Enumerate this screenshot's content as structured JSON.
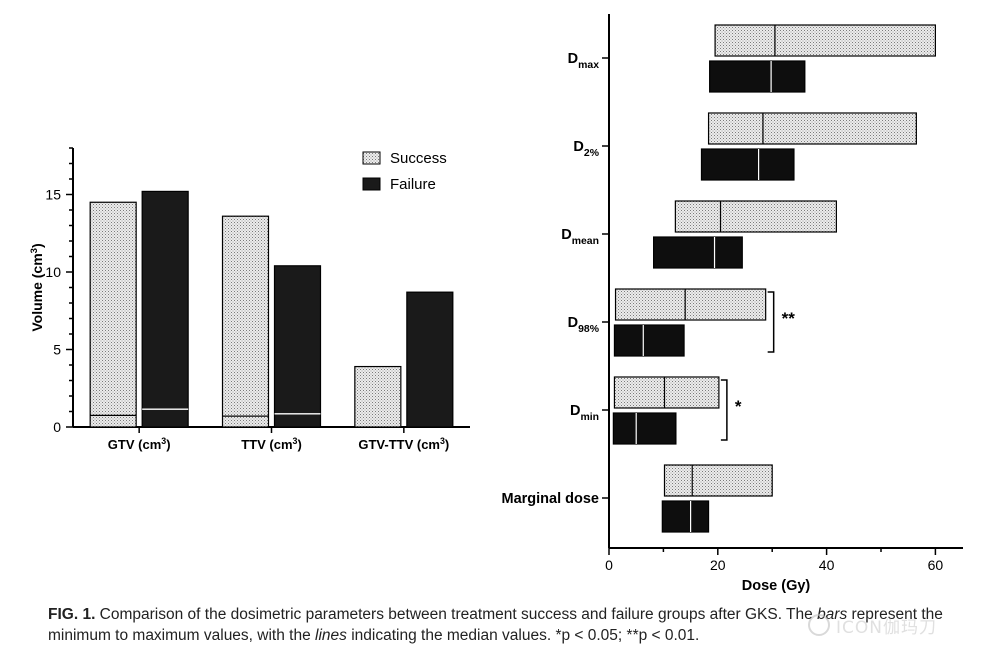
{
  "chart_data": [
    {
      "type": "bar",
      "title": "",
      "xlabel": "",
      "ylabel": "Volume (cm3)",
      "ylim": [
        0,
        18
      ],
      "yticks": [
        0,
        5,
        10,
        15
      ],
      "categories": [
        "GTV (cm3)",
        "TTV (cm3)",
        "GTV-TTV (cm3)"
      ],
      "series": [
        {
          "name": "Success",
          "values": [
            14.5,
            13.6,
            3.9
          ],
          "medians": [
            0.75,
            0.7,
            0
          ],
          "color": "#e3e3e3",
          "pattern": "dotted"
        },
        {
          "name": "Failure",
          "values": [
            15.2,
            10.4,
            8.7
          ],
          "medians": [
            1.15,
            0.85,
            0
          ],
          "color": "#1a1a1a",
          "pattern": "solid"
        }
      ],
      "legend": {
        "placement": "top-right",
        "entries": [
          "Success",
          "Failure"
        ]
      },
      "grid": false
    },
    {
      "type": "floating-bar",
      "title": "",
      "xlabel": "Dose (Gy)",
      "xlim": [
        0,
        65
      ],
      "xticks": [
        0,
        20,
        40,
        60
      ],
      "categories": [
        {
          "main": "D",
          "sub": "max"
        },
        {
          "main": "D",
          "sub": "2%"
        },
        {
          "main": "D",
          "sub": "mean"
        },
        {
          "main": "D",
          "sub": "98%"
        },
        {
          "main": "D",
          "sub": "min"
        },
        {
          "main": "Marginal dose",
          "sub": ""
        }
      ],
      "series": [
        {
          "name": "Success",
          "color": "#e3e3e3",
          "ranges": [
            [
              19.5,
              60,
              30.5
            ],
            [
              18.3,
              56.5,
              28.3
            ],
            [
              12.2,
              41.8,
              20.5
            ],
            [
              1.2,
              28.8,
              14
            ],
            [
              1.0,
              20.2,
              10.2
            ],
            [
              10.2,
              30,
              15.3
            ]
          ]
        },
        {
          "name": "Failure",
          "color": "#0e0e0e",
          "ranges": [
            [
              18.5,
              36,
              29.8
            ],
            [
              17.0,
              34,
              27.5
            ],
            [
              8.2,
              24.5,
              19.4
            ],
            [
              1.0,
              13.8,
              6.3
            ],
            [
              0.8,
              12.3,
              5.0
            ],
            [
              9.8,
              18.3,
              15.0
            ]
          ]
        }
      ],
      "significance": [
        {
          "category_index": 3,
          "label": "**"
        },
        {
          "category_index": 4,
          "label": "*"
        }
      ],
      "grid": false
    }
  ],
  "caption": {
    "label": "FIG. 1.",
    "text_part1": " Comparison of the dosimetric parameters between treatment success and failure groups after GKS. The ",
    "italic_bars": "bars",
    "text_part2": " represent the minimum to maximum values, with the ",
    "italic_lines": "lines",
    "text_part3": " indicating the median values. *p < 0.05; **p < 0.01."
  },
  "watermark": {
    "text": "ICON伽玛刀"
  }
}
